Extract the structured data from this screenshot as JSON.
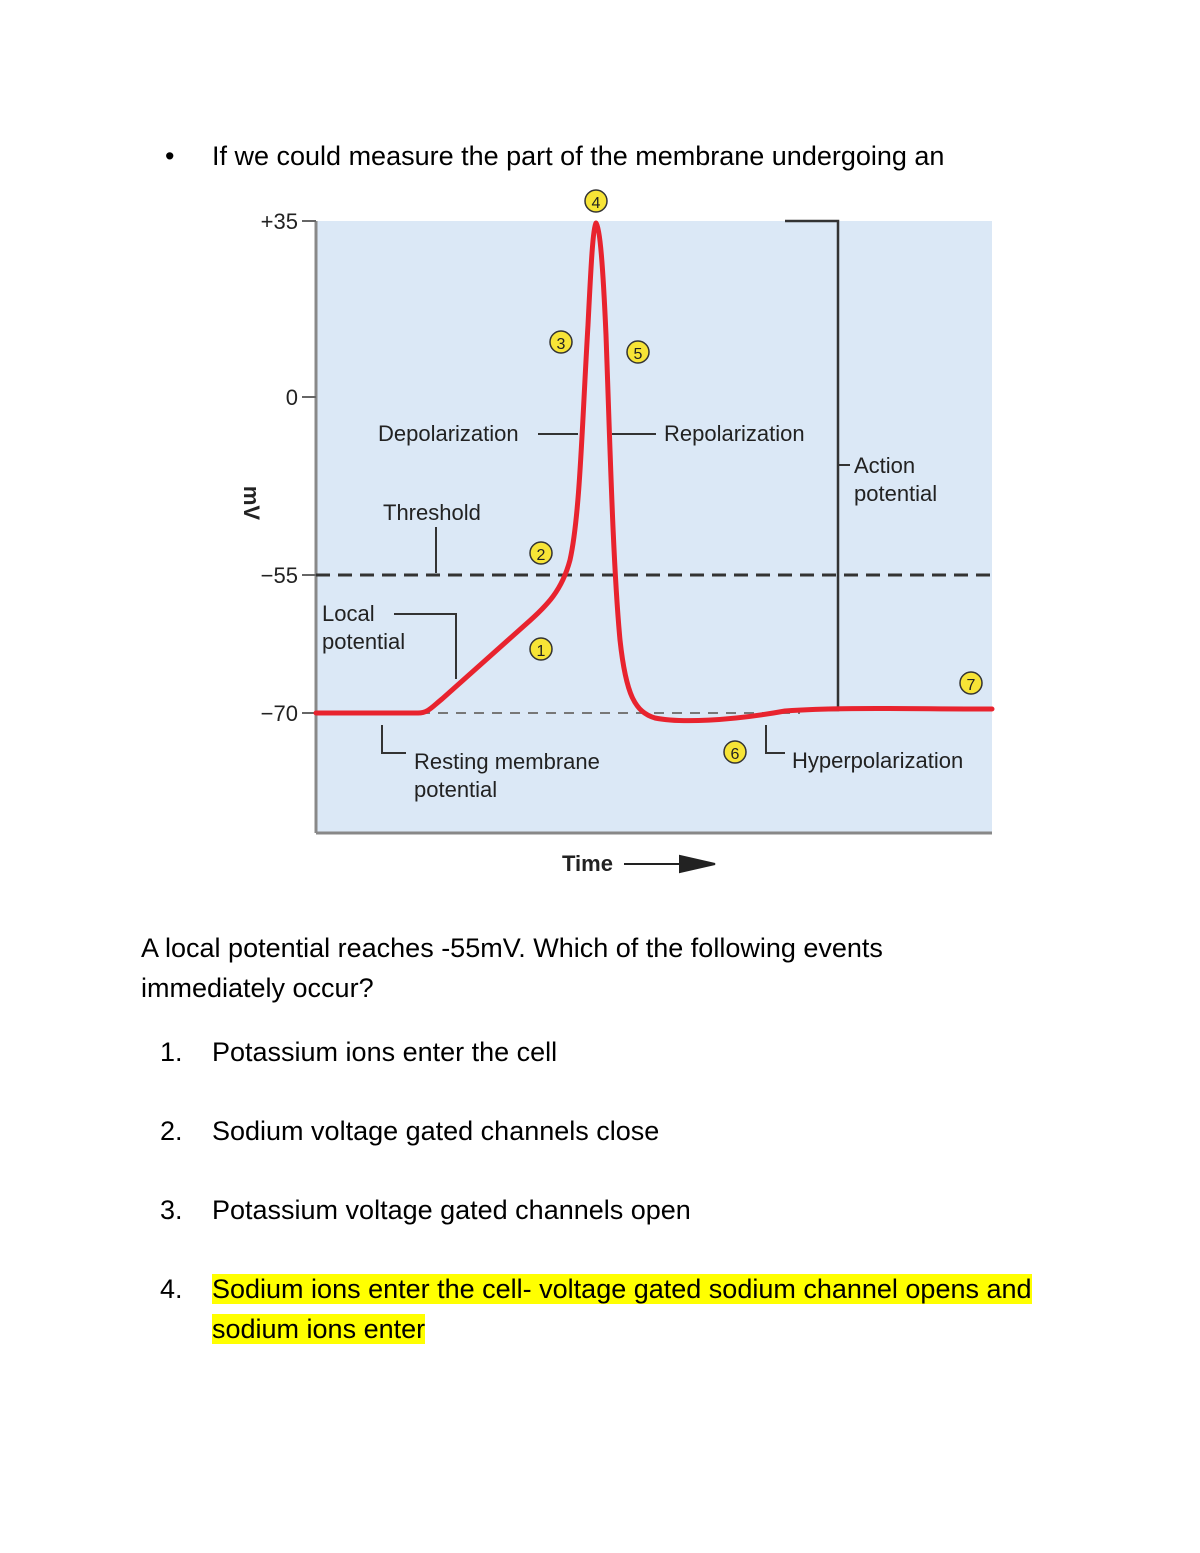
{
  "intro": {
    "bullet": "•",
    "text": "If we could measure the part of the membrane undergoing an"
  },
  "figure": {
    "y_unit": "mV",
    "x_label": "Time",
    "y_ticks": [
      "+35",
      "0",
      "−55",
      "−70"
    ],
    "labels": {
      "depolarization": "Depolarization",
      "repolarization": "Repolarization",
      "threshold": "Threshold",
      "local_potential_1": "Local",
      "local_potential_2": "potential",
      "resting_1": "Resting membrane",
      "resting_2": "potential",
      "action_1": "Action",
      "action_2": "potential",
      "hyperpolarization": "Hyperpolarization"
    },
    "markers": [
      "1",
      "2",
      "3",
      "4",
      "5",
      "6",
      "7"
    ],
    "colors": {
      "background": "#dbe8f6",
      "trace": "#e8232e",
      "marker_fill": "#f7e436"
    }
  },
  "question": {
    "text": "A local potential reaches -55mV. Which of the following events immediately occur?"
  },
  "options": [
    {
      "num": "1.",
      "text": "Potassium ions enter the cell",
      "highlighted": false
    },
    {
      "num": "2.",
      "text": "Sodium voltage gated channels close",
      "highlighted": false
    },
    {
      "num": "3.",
      "text": "Potassium voltage gated channels open",
      "highlighted": false
    },
    {
      "num": "4.",
      "text": "Sodium ions enter the cell- voltage gated sodium channel opens and sodium ions enter",
      "highlighted": true
    }
  ]
}
